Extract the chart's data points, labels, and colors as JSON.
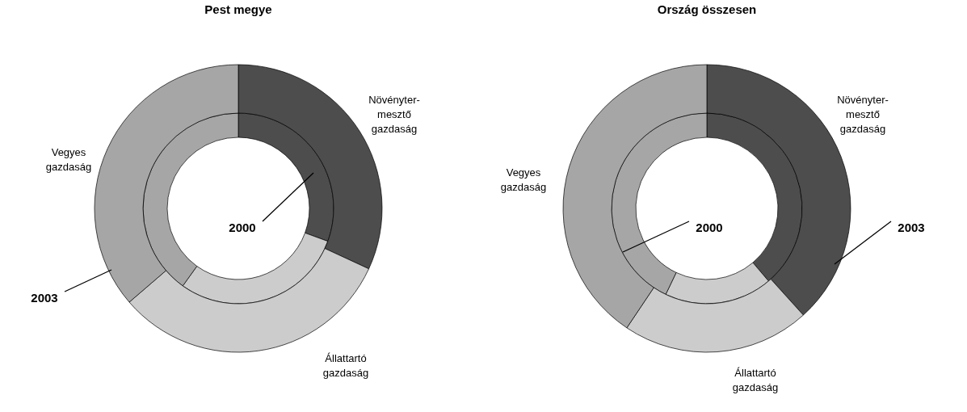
{
  "chart_data": [
    {
      "type": "donut",
      "title": "Pest megye",
      "categories": [
        "Növényter-\nmesztő\ngazdaság",
        "Állattartó\ngazdaság",
        "Vegyes\ngazdaság"
      ],
      "colors": [
        "#4d4d4d",
        "#cccccc",
        "#a6a6a6"
      ],
      "series": [
        {
          "name": "2000",
          "values": [
            30.6,
            29.3,
            40.1
          ]
        },
        {
          "name": "2003",
          "values": [
            31.9,
            31.8,
            36.3
          ]
        }
      ]
    },
    {
      "type": "donut",
      "title": "Ország összesen",
      "categories": [
        "Növényter-\nmesztő\ngazdaság",
        "Állattartó\ngazdaság",
        "Vegyes\ngazdaság"
      ],
      "colors": [
        "#4d4d4d",
        "#cccccc",
        "#a6a6a6"
      ],
      "series": [
        {
          "name": "2000",
          "values": [
            38.8,
            18.3,
            42.9
          ]
        },
        {
          "name": "2003",
          "values": [
            38.3,
            21.1,
            40.6
          ]
        }
      ]
    }
  ]
}
